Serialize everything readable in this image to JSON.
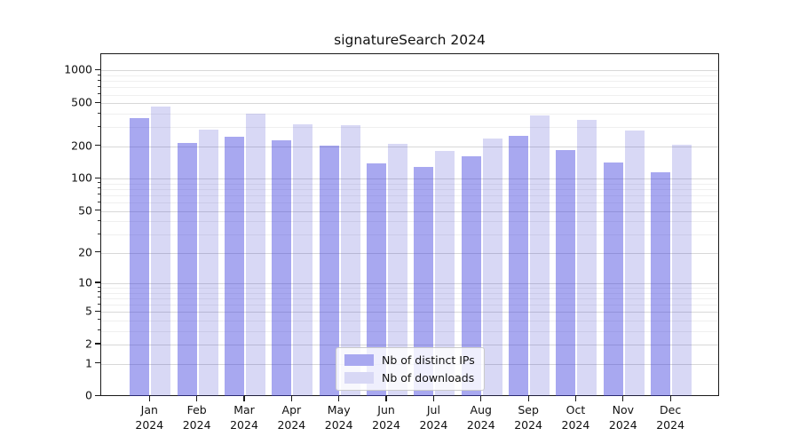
{
  "title": "signatureSearch 2024",
  "legend": {
    "items": [
      {
        "label": "Nb of distinct IPs",
        "color": "#a8a8f0"
      },
      {
        "label": "Nb of downloads",
        "color": "#d8d8f5"
      }
    ]
  },
  "chart_data": {
    "type": "bar",
    "title": "signatureSearch 2024",
    "categories": [
      "Jan 2024",
      "Feb 2024",
      "Mar 2024",
      "Apr 2024",
      "May 2024",
      "Jun 2024",
      "Jul 2024",
      "Aug 2024",
      "Sep 2024",
      "Oct 2024",
      "Nov 2024",
      "Dec 2024"
    ],
    "month_labels": [
      "Jan",
      "Feb",
      "Mar",
      "Apr",
      "May",
      "Jun",
      "Jul",
      "Aug",
      "Sep",
      "Oct",
      "Nov",
      "Dec"
    ],
    "year": "2024",
    "series": [
      {
        "name": "Nb of distinct IPs",
        "color": "rgba(62,62,222,0.45)",
        "values": [
          366,
          215,
          247,
          229,
          204,
          138,
          129,
          163,
          248,
          184,
          142,
          114
        ]
      },
      {
        "name": "Nb of downloads",
        "color": "rgba(60,60,205,0.20)",
        "values": [
          464,
          285,
          397,
          317,
          313,
          211,
          181,
          238,
          386,
          351,
          280,
          207
        ]
      }
    ],
    "xlabel": "",
    "ylabel": "",
    "yscale": "log1p",
    "yticks": [
      1000,
      500,
      200,
      100,
      50,
      20,
      10,
      5,
      2,
      1,
      0
    ],
    "ylim": [
      0,
      1400
    ],
    "grid": true,
    "legend_position": "lower center"
  }
}
